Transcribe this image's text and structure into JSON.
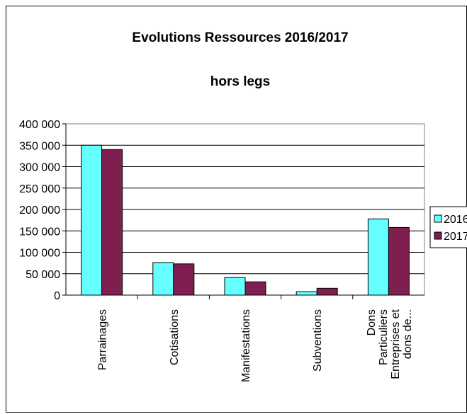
{
  "chart_data": {
    "type": "bar",
    "title": "Evolutions Ressources 2016/2017",
    "subtitle": "hors legs",
    "categories": [
      [
        "Parrainages"
      ],
      [
        "Cotisations"
      ],
      [
        "Manifestations"
      ],
      [
        "Subventions"
      ],
      [
        "Dons",
        "Particuliers",
        "Entreprises et",
        "dons de..."
      ]
    ],
    "series": [
      {
        "name": "2016",
        "color": "#66ffff",
        "values": [
          350000,
          76000,
          41000,
          8000,
          178000
        ]
      },
      {
        "name": "2017",
        "color": "#7f1f4f",
        "values": [
          340000,
          73000,
          31000,
          16000,
          158000
        ]
      }
    ],
    "ylim": [
      0,
      400000
    ],
    "yticks": [
      "0",
      "50 000",
      "100 000",
      "150 000",
      "200 000",
      "250 000",
      "300 000",
      "350 000",
      "400 000"
    ],
    "grid": true,
    "legend": "right"
  }
}
